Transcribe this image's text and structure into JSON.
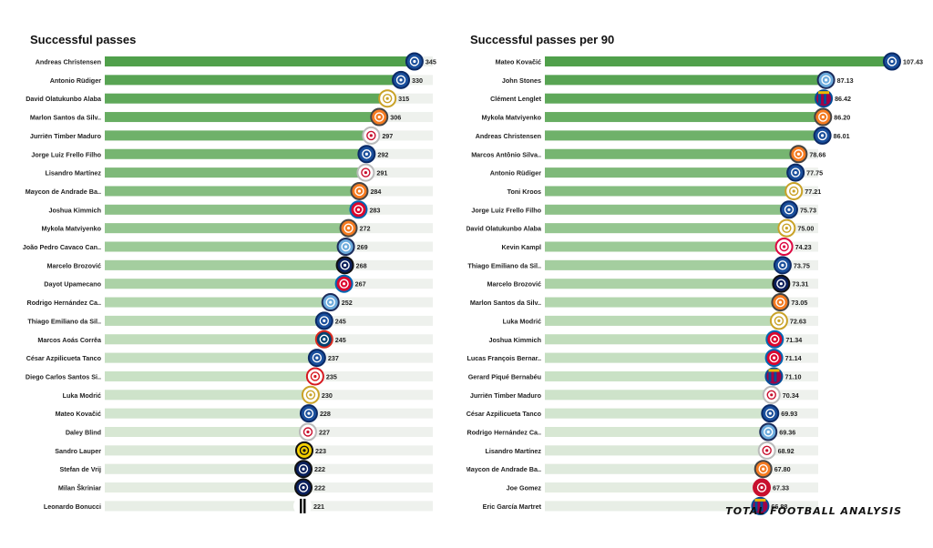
{
  "brand": "TOTAL FOOTBALL ANALYSIS",
  "charts": [
    {
      "chart_data": {
        "type": "bar",
        "title": "Successful passes",
        "xlim": [
          0,
          360
        ],
        "categories": [
          "Andreas Christensen",
          "Antonio Rüdiger",
          "David Olatukunbo Alaba",
          "Marlon Santos da Silv..",
          "Jurriën Timber Maduro",
          "Jorge Luiz Frello Filho",
          "Lisandro Martínez",
          "Maycon de Andrade Ba..",
          "Joshua Kimmich",
          "Mykola Matviyenko",
          "João Pedro Cavaco Can..",
          "Marcelo Brozović",
          "Dayot Upamecano",
          "Rodrigo Hernández Ca..",
          "Thiago Emiliano da Sil..",
          "Marcos  Aoás Corrêa",
          "César Azpilicueta Tanco",
          "Diego Carlos Santos Si..",
          "Luka Modrić",
          "Mateo Kovačić",
          "Daley Blind",
          "Sandro Lauper",
          "Stefan de Vrij",
          "Milan Škriniar",
          "Leonardo Bonucci"
        ],
        "values": [
          345,
          330,
          315,
          306,
          297,
          292,
          291,
          284,
          283,
          272,
          269,
          268,
          267,
          252,
          245,
          245,
          237,
          235,
          230,
          228,
          227,
          223,
          222,
          222,
          221
        ],
        "value_labels": [
          "345",
          "330",
          "315",
          "306",
          "297",
          "292",
          "291",
          "284",
          "283",
          "272",
          "269",
          "268",
          "267",
          "252",
          "245",
          "245",
          "237",
          "235",
          "230",
          "228",
          "227",
          "223",
          "222",
          "222",
          "221"
        ],
        "badges": [
          "chelsea",
          "chelsea",
          "realmadrid",
          "shakhtar",
          "ajax",
          "chelsea",
          "ajax",
          "shakhtar",
          "bayern",
          "shakhtar",
          "mancity",
          "inter",
          "bayern",
          "mancity",
          "chelsea",
          "psg",
          "chelsea",
          "sevilla",
          "realmadrid",
          "chelsea",
          "ajax",
          "youngboys",
          "inter",
          "inter",
          "juventus"
        ]
      }
    },
    {
      "chart_data": {
        "type": "bar",
        "title": "Successful passes per 90",
        "xlim": [
          0,
          108
        ],
        "categories": [
          "Mateo Kovačić",
          "John Stones",
          "Clément Lenglet",
          "Mykola Matviyenko",
          "Andreas Christensen",
          "Marcos Antônio Silva..",
          "Antonio Rüdiger",
          "Toni Kroos",
          "Jorge Luiz Frello Filho",
          "David Olatukunbo Alaba",
          "Kevin Kampl",
          "Thiago Emiliano da Sil..",
          "Marcelo Brozović",
          "Marlon Santos da Silv..",
          "Luka Modrić",
          "Joshua Kimmich",
          "Lucas François Bernar..",
          "Gerard Piqué Bernabéu",
          "Jurriën Timber Maduro",
          "César Azpilicueta Tanco",
          "Rodrigo Hernández Ca..",
          "Lisandro Martínez",
          "Maycon de Andrade Ba..",
          "Joe Gomez",
          "Eric García Martret"
        ],
        "values": [
          107.43,
          87.13,
          86.42,
          86.2,
          86.01,
          78.66,
          77.75,
          77.21,
          75.73,
          75.0,
          74.23,
          73.75,
          73.31,
          73.05,
          72.63,
          71.34,
          71.14,
          71.1,
          70.34,
          69.93,
          69.36,
          68.92,
          67.8,
          67.33,
          66.88
        ],
        "value_labels": [
          "107.43",
          "87.13",
          "86.42",
          "86.20",
          "86.01",
          "78.66",
          "77.75",
          "77.21",
          "75.73",
          "75.00",
          "74.23",
          "73.75",
          "73.31",
          "73.05",
          "72.63",
          "71.34",
          "71.14",
          "71.10",
          "70.34",
          "69.93",
          "69.36",
          "68.92",
          "67.80",
          "67.33",
          "66.88"
        ],
        "badges": [
          "chelsea",
          "mancity",
          "barcelona",
          "shakhtar",
          "chelsea",
          "shakhtar",
          "chelsea",
          "realmadrid",
          "chelsea",
          "realmadrid",
          "leipzig",
          "chelsea",
          "inter",
          "shakhtar",
          "realmadrid",
          "bayern",
          "bayern",
          "barcelona",
          "ajax",
          "chelsea",
          "mancity",
          "ajax",
          "shakhtar",
          "liverpool",
          "barcelona"
        ]
      }
    }
  ],
  "badge_styles": {
    "chelsea": {
      "fill": "#1a4f9c",
      "ring": "#0b2a66",
      "mark": "#ffffff"
    },
    "realmadrid": {
      "fill": "#ffffff",
      "ring": "#c9a227",
      "mark": "#c9a227"
    },
    "shakhtar": {
      "fill": "#f47a20",
      "ring": "#444444",
      "mark": "#ffffff"
    },
    "ajax": {
      "fill": "#ffffff",
      "ring": "#bbbbbb",
      "mark": "#c8102e"
    },
    "bayern": {
      "fill": "#dc052d",
      "ring": "#0066b2",
      "mark": "#ffffff"
    },
    "mancity": {
      "fill": "#6cabdd",
      "ring": "#1c2c5b",
      "mark": "#ffffff"
    },
    "inter": {
      "fill": "#0a1f5c",
      "ring": "#111111",
      "mark": "#ffffff"
    },
    "psg": {
      "fill": "#004170",
      "ring": "#da291c",
      "mark": "#ffffff"
    },
    "sevilla": {
      "fill": "#ffffff",
      "ring": "#d71920",
      "mark": "#d71920"
    },
    "youngboys": {
      "fill": "#f5d000",
      "ring": "#111111",
      "mark": "#111111"
    },
    "juventus": {
      "fill": "#ffffff",
      "ring": "#ffffff",
      "mark": "#111111"
    },
    "barcelona": {
      "fill": "#a50044",
      "ring": "#004d98",
      "mark": "#edbb00"
    },
    "leipzig": {
      "fill": "#ffffff",
      "ring": "#dd0741",
      "mark": "#dd0741"
    },
    "liverpool": {
      "fill": "#c8102e",
      "ring": "#c8102e",
      "mark": "#ffffff"
    }
  }
}
